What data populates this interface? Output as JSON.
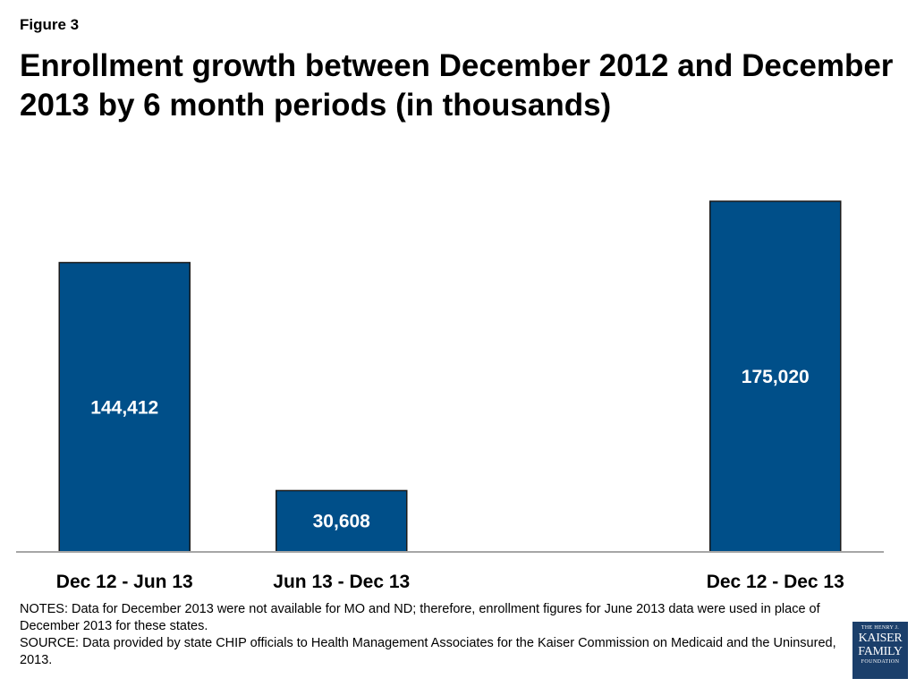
{
  "figure_label": "Figure 3",
  "title": "Enrollment growth between December 2012 and December 2013 by 6 month periods (in thousands)",
  "chart_data": {
    "type": "bar",
    "categories": [
      "Dec 12 - Jun 13",
      "Jun 13 - Dec 13",
      "Dec 12 - Dec 13"
    ],
    "values": [
      144412,
      30608,
      175020
    ],
    "value_labels": [
      "144,412",
      "30,608",
      "175,020"
    ],
    "slots": [
      0,
      1,
      3
    ],
    "slot_count": 4,
    "ylim": [
      0,
      175020
    ],
    "bar_color": "#004f89",
    "grid": false,
    "legend": "none"
  },
  "notes": {
    "notes_text": "NOTES: Data for December 2013 were not available for MO and ND; therefore, enrollment figures for June 2013 data were used in place of December 2013 for these states.",
    "source_text": "SOURCE: Data provided by state CHIP officials to Health Management Associates for the Kaiser Commission on Medicaid and the Uninsured, 2013."
  },
  "logo": {
    "line1": "THE HENRY J.",
    "line2": "KAISER",
    "line3": "FAMILY",
    "line4": "FOUNDATION"
  }
}
